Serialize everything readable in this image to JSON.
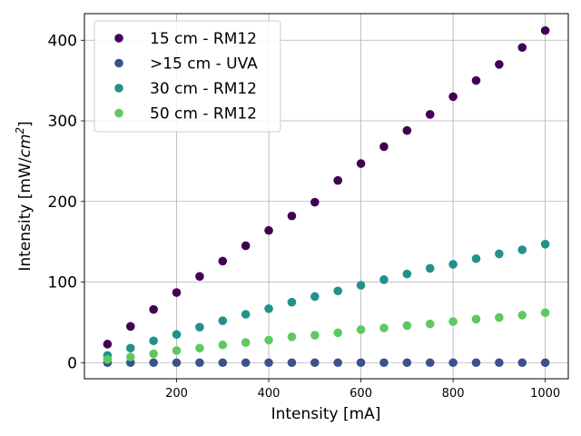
{
  "chart_data": {
    "type": "scatter",
    "xlabel": "Intensity [mA]",
    "ylabel_main": "Intensity [mW/",
    "ylabel_unit": "cm",
    "ylabel_exp": "2",
    "ylabel_close": "]",
    "xlim": [
      0,
      1050
    ],
    "ylim": [
      -20,
      433
    ],
    "xticks": [
      200,
      400,
      600,
      800,
      1000
    ],
    "yticks": [
      0,
      100,
      200,
      300,
      400
    ],
    "grid": true,
    "legend_position": "top-left",
    "x": [
      50,
      100,
      150,
      200,
      250,
      300,
      350,
      400,
      450,
      500,
      550,
      600,
      650,
      700,
      750,
      800,
      850,
      900,
      950,
      1000
    ],
    "series": [
      {
        "name": "15 cm - RM12",
        "color": "#440154",
        "values": [
          23,
          45,
          66,
          87,
          107,
          126,
          145,
          164,
          182,
          199,
          226,
          247,
          268,
          288,
          308,
          330,
          350,
          370,
          391,
          412
        ]
      },
      {
        "name": ">15 cm - UVA",
        "color": "#3b528b",
        "values": [
          0,
          0,
          0,
          0,
          0,
          0,
          0,
          0,
          0,
          0,
          0,
          0,
          0,
          0,
          0,
          0,
          0,
          0,
          0,
          0
        ]
      },
      {
        "name": "30 cm - RM12",
        "color": "#21918c",
        "values": [
          9,
          18,
          27,
          35,
          44,
          52,
          60,
          67,
          75,
          82,
          89,
          96,
          103,
          110,
          117,
          122,
          129,
          135,
          140,
          147
        ]
      },
      {
        "name": "50 cm - RM12",
        "color": "#5ec962",
        "values": [
          4,
          7,
          11,
          15,
          18,
          22,
          25,
          28,
          32,
          34,
          37,
          41,
          43,
          46,
          48,
          51,
          54,
          56,
          59,
          62
        ]
      }
    ]
  }
}
